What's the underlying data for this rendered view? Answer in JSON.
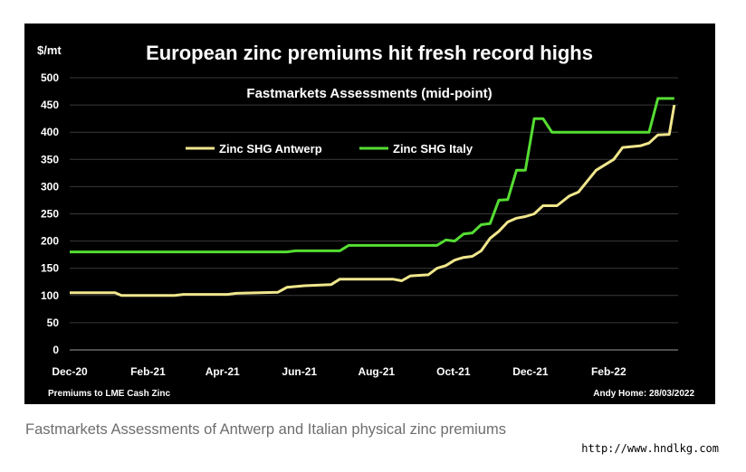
{
  "caption": "Fastmarkets Assessments of Antwerp and Italian physical zinc premiums",
  "watermark_url": "http://www.hndlkg.com",
  "chart_data": {
    "type": "line",
    "title": "European zinc premiums hit fresh record highs",
    "subtitle": "Fastmarkets Assessments (mid-point)",
    "ylabel": "$/mt",
    "ylim": [
      0,
      500
    ],
    "yticks": [
      0,
      50,
      100,
      150,
      200,
      250,
      300,
      350,
      400,
      450,
      500
    ],
    "xlim": [
      "2020-12-01",
      "2022-03-28"
    ],
    "xticks": [
      {
        "date": "2020-12-01",
        "label": "Dec-20"
      },
      {
        "date": "2021-02-01",
        "label": "Feb-21"
      },
      {
        "date": "2021-04-01",
        "label": "Apr-21"
      },
      {
        "date": "2021-06-01",
        "label": "Jun-21"
      },
      {
        "date": "2021-08-01",
        "label": "Aug-21"
      },
      {
        "date": "2021-10-01",
        "label": "Oct-21"
      },
      {
        "date": "2021-12-01",
        "label": "Dec-21"
      },
      {
        "date": "2022-02-01",
        "label": "Feb-22"
      }
    ],
    "grid": true,
    "legend_position": "top-left",
    "background": "#000000",
    "text_color": "#ffffff",
    "footnote_left": "Premiums to LME Cash Zinc",
    "footnote_right": "Andy Home: 28/03/2022",
    "series": [
      {
        "name": "Zinc SHG Antwerp",
        "color": "#f0e68c",
        "points": [
          [
            "2020-12-01",
            105
          ],
          [
            "2021-01-06",
            105
          ],
          [
            "2021-01-11",
            100
          ],
          [
            "2021-02-22",
            100
          ],
          [
            "2021-03-01",
            102
          ],
          [
            "2021-04-05",
            102
          ],
          [
            "2021-04-12",
            104
          ],
          [
            "2021-05-15",
            106
          ],
          [
            "2021-05-22",
            115
          ],
          [
            "2021-06-05",
            118
          ],
          [
            "2021-06-26",
            120
          ],
          [
            "2021-07-03",
            130
          ],
          [
            "2021-08-14",
            130
          ],
          [
            "2021-08-21",
            127
          ],
          [
            "2021-08-28",
            136
          ],
          [
            "2021-09-11",
            138
          ],
          [
            "2021-09-18",
            150
          ],
          [
            "2021-09-25",
            155
          ],
          [
            "2021-10-02",
            165
          ],
          [
            "2021-10-09",
            170
          ],
          [
            "2021-10-16",
            172
          ],
          [
            "2021-10-23",
            182
          ],
          [
            "2021-10-30",
            205
          ],
          [
            "2021-11-06",
            218
          ],
          [
            "2021-11-13",
            235
          ],
          [
            "2021-11-20",
            242
          ],
          [
            "2021-11-27",
            245
          ],
          [
            "2021-12-04",
            250
          ],
          [
            "2021-12-11",
            265
          ],
          [
            "2021-12-22",
            265
          ],
          [
            "2022-01-01",
            283
          ],
          [
            "2022-01-08",
            290
          ],
          [
            "2022-01-15",
            310
          ],
          [
            "2022-01-22",
            330
          ],
          [
            "2022-01-29",
            340
          ],
          [
            "2022-02-05",
            350
          ],
          [
            "2022-02-12",
            372
          ],
          [
            "2022-02-26",
            375
          ],
          [
            "2022-03-05",
            380
          ],
          [
            "2022-03-12",
            395
          ],
          [
            "2022-03-21",
            396
          ],
          [
            "2022-03-25",
            450
          ]
        ]
      },
      {
        "name": "Zinc SHG Italy",
        "color": "#55dd33",
        "points": [
          [
            "2020-12-01",
            180
          ],
          [
            "2021-05-22",
            180
          ],
          [
            "2021-05-29",
            182
          ],
          [
            "2021-07-03",
            182
          ],
          [
            "2021-07-10",
            192
          ],
          [
            "2021-09-18",
            192
          ],
          [
            "2021-09-25",
            202
          ],
          [
            "2021-10-02",
            200
          ],
          [
            "2021-10-09",
            213
          ],
          [
            "2021-10-16",
            215
          ],
          [
            "2021-10-23",
            230
          ],
          [
            "2021-10-30",
            232
          ],
          [
            "2021-11-06",
            275
          ],
          [
            "2021-11-13",
            276
          ],
          [
            "2021-11-20",
            330
          ],
          [
            "2021-11-27",
            330
          ],
          [
            "2021-12-04",
            425
          ],
          [
            "2021-12-11",
            425
          ],
          [
            "2021-12-18",
            400
          ],
          [
            "2022-03-05",
            400
          ],
          [
            "2022-03-12",
            462
          ],
          [
            "2022-03-25",
            462
          ]
        ]
      }
    ]
  }
}
